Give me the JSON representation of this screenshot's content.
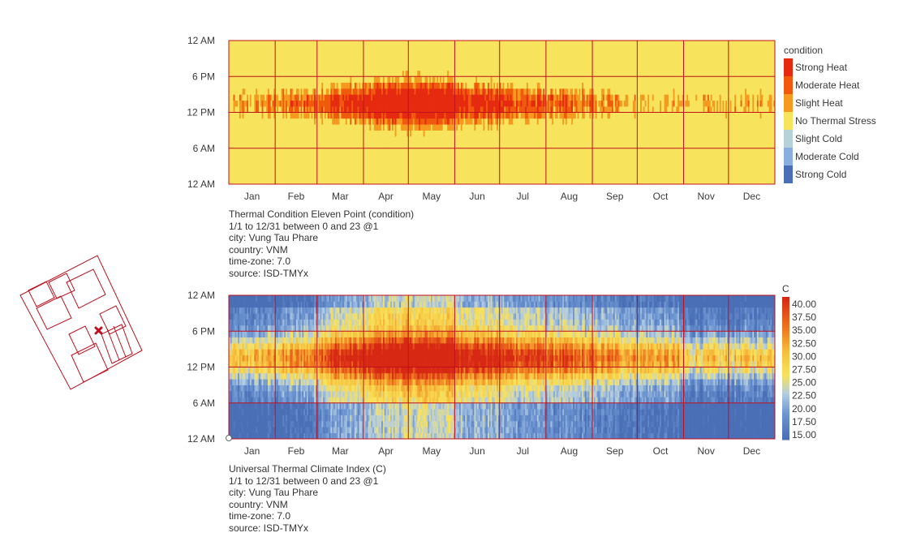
{
  "chart_data": [
    {
      "type": "heatmap",
      "title": "Thermal Condition Eleven Point (condition)",
      "meta": [
        "1/1 to 12/31 between 0 and 23 @1",
        "city: Vung Tau Phare",
        "country: VNM",
        "time-zone: 7.0",
        "source: ISD-TMYx"
      ],
      "y_ticks": [
        "12 AM",
        "6 PM",
        "12 PM",
        "6 AM",
        "12 AM"
      ],
      "x_ticks": [
        "Jan",
        "Feb",
        "Mar",
        "Apr",
        "May",
        "Jun",
        "Jul",
        "Aug",
        "Sep",
        "Oct",
        "Nov",
        "Dec"
      ],
      "legend_title": "condition",
      "legend": [
        {
          "label": "Strong Heat",
          "color": "#e52a10"
        },
        {
          "label": "Moderate Heat",
          "color": "#f05a0d"
        },
        {
          "label": "Slight Heat",
          "color": "#f59a1e"
        },
        {
          "label": "No Thermal Stress",
          "color": "#f8e35c"
        },
        {
          "label": "Slight Cold",
          "color": "#b7d1d8"
        },
        {
          "label": "Moderate Cold",
          "color": "#8aaee0"
        },
        {
          "label": "Strong Cold",
          "color": "#4a6fb6"
        }
      ],
      "grid": true,
      "grid_color": "#c0101e"
    },
    {
      "type": "heatmap",
      "title": "Universal Thermal Climate Index (C)",
      "meta": [
        "1/1 to 12/31 between 0 and 23 @1",
        "city: Vung Tau Phare",
        "country: VNM",
        "time-zone: 7.0",
        "source: ISD-TMYx"
      ],
      "y_ticks": [
        "12 AM",
        "6 PM",
        "12 PM",
        "6 AM",
        "12 AM"
      ],
      "x_ticks": [
        "Jan",
        "Feb",
        "Mar",
        "Apr",
        "May",
        "Jun",
        "Jul",
        "Aug",
        "Sep",
        "Oct",
        "Nov",
        "Dec"
      ],
      "legend_title": "C",
      "legend_ticks": [
        "40.00",
        "37.50",
        "35.00",
        "32.50",
        "30.00",
        "27.50",
        "25.00",
        "22.50",
        "20.00",
        "17.50",
        "15.00"
      ],
      "value_range": [
        15,
        40
      ],
      "grid": true,
      "grid_color": "#c0101e"
    }
  ]
}
